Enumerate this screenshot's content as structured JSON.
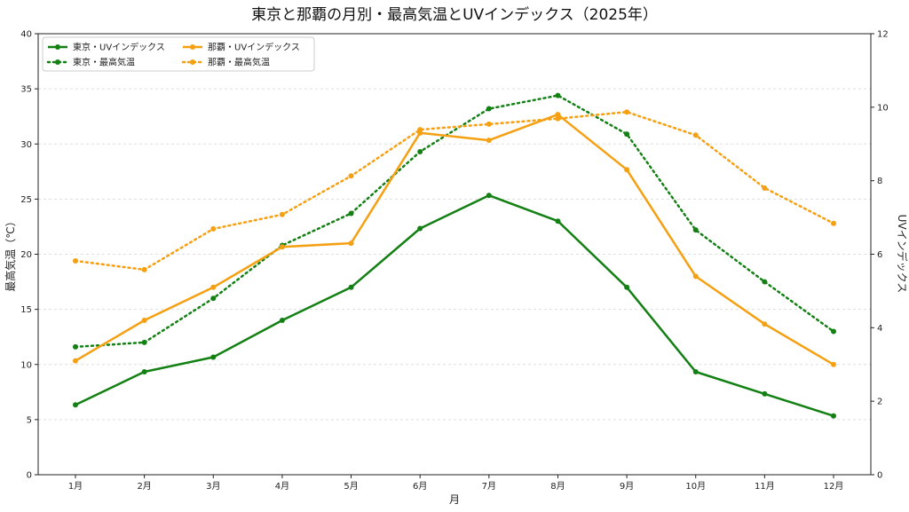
{
  "chart_data": {
    "type": "line",
    "title": "東京と那覇の月別・最高気温とUVインデックス（2025年）",
    "xlabel": "月",
    "ylabel_left": "最高気温（℃）",
    "ylabel_right": "UVインデックス",
    "categories": [
      "1月",
      "2月",
      "3月",
      "4月",
      "5月",
      "6月",
      "7月",
      "8月",
      "9月",
      "10月",
      "11月",
      "12月"
    ],
    "ylim_left": [
      0,
      40
    ],
    "yticks_left": [
      0,
      5,
      10,
      15,
      20,
      25,
      30,
      35,
      40
    ],
    "ylim_right": [
      0,
      12
    ],
    "yticks_right": [
      0,
      2,
      4,
      6,
      8,
      10,
      12
    ],
    "grid": "horizontal dashed",
    "legend_position": "top-left",
    "series": [
      {
        "name": "東京・UVインデックス",
        "axis": "right",
        "style": "solid",
        "color": "#138013",
        "values": [
          1.9,
          2.8,
          3.2,
          4.2,
          5.1,
          6.7,
          7.6,
          6.9,
          5.1,
          2.8,
          2.2,
          1.6
        ]
      },
      {
        "name": "東京・最高気温",
        "axis": "left",
        "style": "dotted",
        "color": "#138013",
        "values": [
          11.6,
          12.0,
          16.0,
          20.8,
          23.7,
          29.3,
          33.2,
          34.4,
          30.9,
          22.2,
          17.5,
          13.0
        ]
      },
      {
        "name": "那覇・UVインデックス",
        "axis": "right",
        "style": "solid",
        "color": "#f5a012",
        "values": [
          3.1,
          4.2,
          5.1,
          6.2,
          6.3,
          9.3,
          9.1,
          9.8,
          8.3,
          5.4,
          4.1,
          3.0
        ]
      },
      {
        "name": "那覇・最高気温",
        "axis": "left",
        "style": "dotted",
        "color": "#f5a012",
        "values": [
          19.4,
          18.6,
          22.3,
          23.6,
          27.1,
          31.3,
          31.8,
          32.3,
          32.9,
          30.8,
          26.0,
          22.8
        ]
      }
    ]
  }
}
